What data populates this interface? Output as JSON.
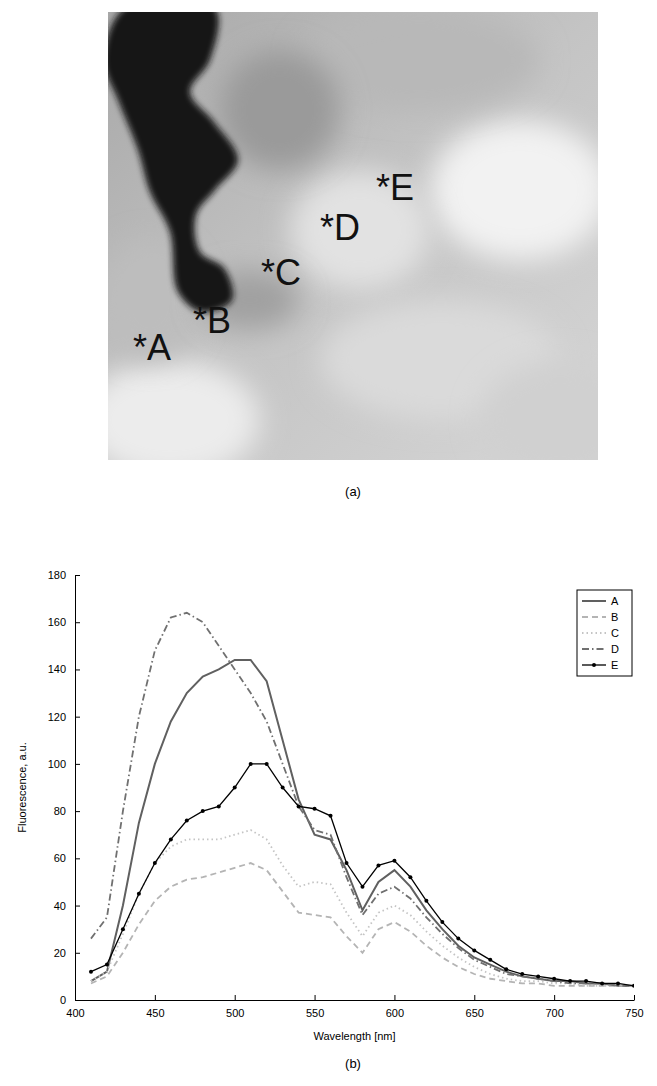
{
  "image": {
    "caption": "(a)",
    "labels": [
      "*A",
      "*B",
      "*C",
      "*D",
      "*E"
    ]
  },
  "chart_data": {
    "type": "line",
    "title": "(b)",
    "x_label": "Wavelength [nm]",
    "y_label": "Fluorescence, a.u.",
    "x": [
      410,
      420,
      430,
      440,
      450,
      460,
      470,
      480,
      490,
      500,
      510,
      520,
      530,
      540,
      550,
      560,
      570,
      580,
      590,
      600,
      610,
      620,
      630,
      640,
      650,
      660,
      670,
      680,
      690,
      700,
      710,
      720,
      730,
      740,
      750
    ],
    "series": [
      {
        "name": "A",
        "color": "#606060",
        "line_style": "solid",
        "values": [
          8,
          12,
          40,
          75,
          100,
          118,
          130,
          137,
          140,
          144,
          144,
          135,
          110,
          85,
          70,
          68,
          55,
          38,
          50,
          55,
          48,
          38,
          30,
          23,
          18,
          15,
          12,
          10,
          9,
          8,
          8,
          7,
          7,
          6,
          6
        ]
      },
      {
        "name": "B",
        "color": "#b4b4b4",
        "line_style": "dashed",
        "values": [
          7,
          10,
          20,
          32,
          42,
          48,
          51,
          52,
          54,
          56,
          58,
          55,
          46,
          37,
          36,
          35,
          27,
          20,
          30,
          33,
          29,
          23,
          18,
          14,
          11,
          9,
          8,
          7,
          7,
          6,
          6,
          6,
          6,
          6,
          6
        ]
      },
      {
        "name": "C",
        "color": "#c4c4c4",
        "line_style": "dotted",
        "values": [
          8,
          12,
          28,
          45,
          58,
          65,
          68,
          68,
          68,
          70,
          72,
          68,
          57,
          48,
          50,
          49,
          37,
          27,
          37,
          40,
          36,
          29,
          23,
          18,
          14,
          11,
          9,
          8,
          8,
          7,
          7,
          6,
          6,
          6,
          6
        ]
      },
      {
        "name": "D",
        "color": "#707070",
        "line_style": "dashdot",
        "values": [
          26,
          35,
          80,
          120,
          148,
          162,
          164,
          160,
          150,
          140,
          130,
          118,
          100,
          82,
          72,
          70,
          52,
          36,
          45,
          48,
          43,
          35,
          28,
          22,
          17,
          14,
          11,
          10,
          9,
          8,
          7,
          7,
          7,
          6,
          6
        ]
      },
      {
        "name": "E",
        "color": "#000000",
        "line_style": "solid",
        "marker": "dot",
        "values": [
          12,
          15,
          30,
          45,
          58,
          68,
          76,
          80,
          82,
          90,
          100,
          100,
          90,
          82,
          81,
          78,
          58,
          48,
          57,
          59,
          52,
          42,
          33,
          26,
          21,
          17,
          13,
          11,
          10,
          9,
          8,
          8,
          7,
          7,
          6
        ]
      }
    ],
    "xlim": [
      400,
      750
    ],
    "xticks": [
      400,
      450,
      500,
      550,
      600,
      650,
      700,
      750
    ],
    "ylim": [
      0,
      180
    ],
    "yticks": [
      0,
      20,
      40,
      60,
      80,
      100,
      120,
      140,
      160,
      180
    ],
    "grid": false,
    "legend": "top-right"
  }
}
